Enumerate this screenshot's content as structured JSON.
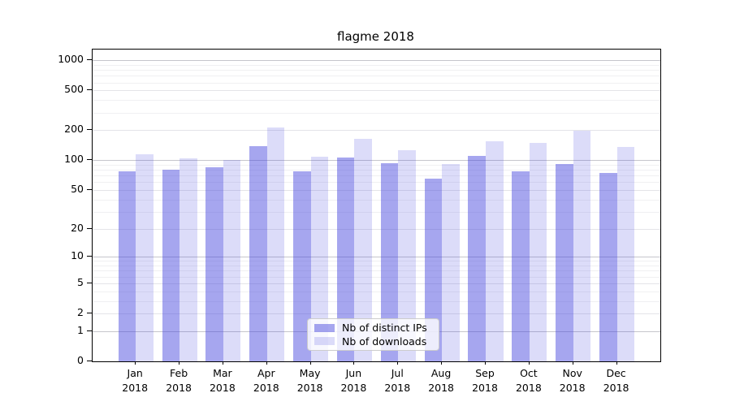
{
  "figure": {
    "title": "flagme 2018",
    "background_color": "#ffffff"
  },
  "chart_data": {
    "type": "bar",
    "title": "flagme 2018",
    "categories": [
      "Jan 2018",
      "Feb 2018",
      "Mar 2018",
      "Apr 2018",
      "May 2018",
      "Jun 2018",
      "Jul 2018",
      "Aug 2018",
      "Sep 2018",
      "Oct 2018",
      "Nov 2018",
      "Dec 2018"
    ],
    "series": [
      {
        "name": "Nb of distinct IPs",
        "color": "rgba(68,68,221,0.48)",
        "values": [
          78,
          80,
          85,
          140,
          78,
          106,
          94,
          65,
          111,
          77,
          91,
          75
        ]
      },
      {
        "name": "Nb of downloads",
        "color": "rgba(68,68,221,0.19)",
        "values": [
          114,
          104,
          100,
          215,
          109,
          165,
          127,
          92,
          154,
          150,
          197,
          135
        ]
      }
    ],
    "xlabel": "",
    "ylabel": "",
    "yscale": "log1p",
    "ylim": [
      0,
      1280
    ],
    "y_ticks": [
      0,
      1,
      2,
      5,
      10,
      20,
      50,
      100,
      200,
      500,
      1000
    ],
    "y_minor_gridlines": [
      3,
      4,
      6,
      7,
      8,
      9,
      30,
      40,
      60,
      70,
      80,
      90,
      300,
      400,
      600,
      700,
      800,
      900
    ],
    "grid": "both",
    "legend_position": "lower center",
    "grid_color_major": "#c6c6cc",
    "grid_color_mid": "#e4e4e8",
    "grid_color_minor": "#f0f0f2"
  }
}
